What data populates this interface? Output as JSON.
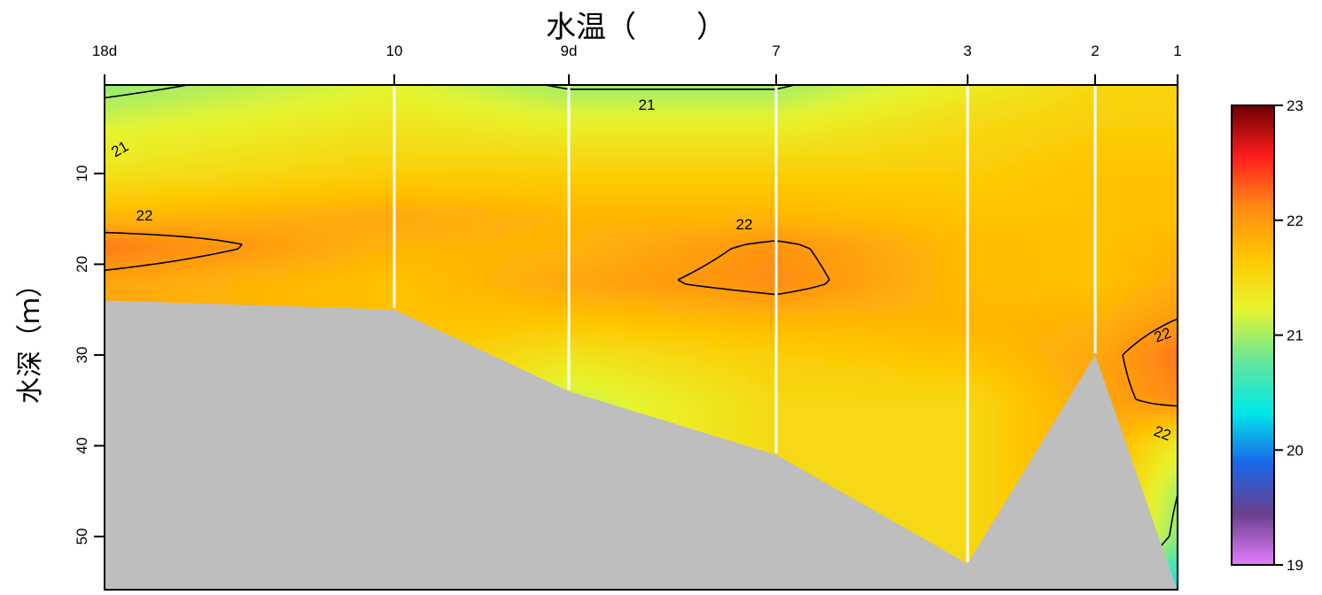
{
  "chart_data": {
    "type": "heatmap",
    "title": "水温（　　）",
    "ylabel": "水深（ｍ）",
    "xlabel": "",
    "stations": [
      "18d",
      "10",
      "9d",
      "7",
      "3",
      "2",
      "1"
    ],
    "ylim": [
      0,
      56
    ],
    "yticks": [
      10,
      20,
      30,
      40,
      50
    ],
    "bottom_depth_m": [
      24,
      25,
      34,
      41,
      53,
      30,
      56
    ],
    "temperature_grid_C": {
      "depths_m": [
        0,
        5,
        10,
        15,
        18,
        22,
        26,
        30,
        35,
        40,
        45,
        50,
        55
      ],
      "profiles": [
        [
          20.9,
          21.2,
          21.4,
          21.8,
          22.2,
          21.9,
          null,
          null,
          null,
          null,
          null,
          null,
          null
        ],
        [
          21.2,
          21.4,
          21.6,
          21.9,
          21.8,
          21.7,
          null,
          null,
          null,
          null,
          null,
          null,
          null
        ],
        [
          20.95,
          21.3,
          21.6,
          21.8,
          21.8,
          21.9,
          21.7,
          21.4,
          21.1,
          null,
          null,
          null,
          null
        ],
        [
          20.95,
          21.3,
          21.6,
          21.8,
          22.05,
          22.1,
          21.8,
          21.6,
          21.5,
          21.5,
          null,
          null,
          null
        ],
        [
          21.3,
          21.5,
          21.6,
          21.7,
          21.75,
          21.75,
          21.8,
          21.7,
          21.5,
          21.5,
          21.5,
          21.5,
          null
        ],
        [
          21.5,
          21.6,
          21.7,
          21.7,
          21.7,
          21.7,
          21.8,
          21.9,
          null,
          null,
          null,
          null,
          null
        ],
        [
          21.55,
          21.6,
          21.7,
          21.7,
          21.8,
          21.85,
          22.0,
          22.2,
          22.1,
          21.3,
          21.0,
          20.9,
          20.3
        ]
      ]
    },
    "contours": [
      {
        "label": "21",
        "level": 21
      },
      {
        "label": "22",
        "level": 22
      }
    ],
    "colorbar": {
      "min": 19,
      "max": 23,
      "ticks": [
        19,
        20,
        21,
        22,
        23
      ],
      "colors": [
        "#e27dff",
        "#6a3f8c",
        "#1a67e8",
        "#00e8e8",
        "#66e69a",
        "#e6f52f",
        "#ffc700",
        "#ff8a14",
        "#ff1c1c",
        "#6b0000"
      ]
    },
    "bottom_fill": "#bebebe",
    "grid": false
  }
}
